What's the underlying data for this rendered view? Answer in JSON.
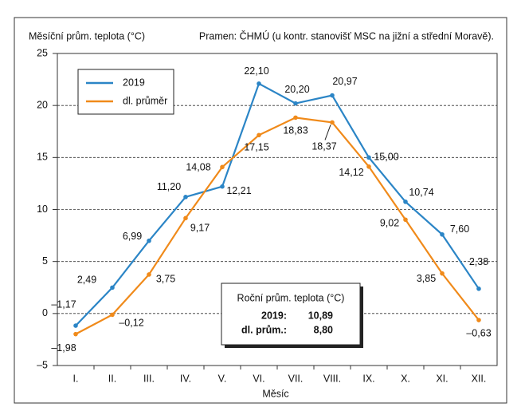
{
  "chart_data": {
    "type": "line",
    "title": "Měsíční prům. teplota (°C)",
    "subtitle": "Pramen: ČHMÚ (u kontr. stanovišť MSC na jižní a střední Moravě).",
    "x_label": "Měsíc",
    "categories": [
      "I.",
      "II.",
      "III.",
      "IV.",
      "V.",
      "VI.",
      "VII.",
      "VIII.",
      "IX.",
      "X.",
      "XI.",
      "XII."
    ],
    "series": [
      {
        "name": "2019",
        "color": "#2b85c6",
        "values": [
          -1.17,
          2.49,
          6.99,
          11.2,
          12.21,
          22.1,
          20.2,
          20.97,
          15.0,
          10.74,
          7.6,
          2.38
        ],
        "value_labels": [
          "–1,17",
          "2,49",
          "6,99",
          "11,20",
          "12,21",
          "22,10",
          "20,20",
          "20,97",
          "15,00",
          "10,74",
          "7,60",
          "2,38"
        ]
      },
      {
        "name": "dl. průměr",
        "color": "#f08a1a",
        "values": [
          -1.98,
          -0.12,
          3.75,
          9.17,
          14.08,
          17.15,
          18.83,
          18.37,
          14.12,
          9.02,
          3.85,
          -0.63
        ],
        "value_labels": [
          "–1,98",
          "–0,12",
          "3,75",
          "9,17",
          "14,08",
          "17,15",
          "18,83",
          "18,37",
          "14,12",
          "9,02",
          "3,85",
          "–0,63"
        ]
      }
    ],
    "ylim": [
      -5,
      25
    ],
    "yticks": [
      {
        "value": -5,
        "label": "–5"
      },
      0,
      5,
      10,
      15,
      20,
      25
    ],
    "grid": true,
    "legend": "upper left",
    "annual_box": {
      "title": "Roční prům. teplota (°C)",
      "rows": [
        [
          "2019:",
          "10,89"
        ],
        [
          "dl. prům.:",
          "8,80"
        ]
      ]
    }
  }
}
